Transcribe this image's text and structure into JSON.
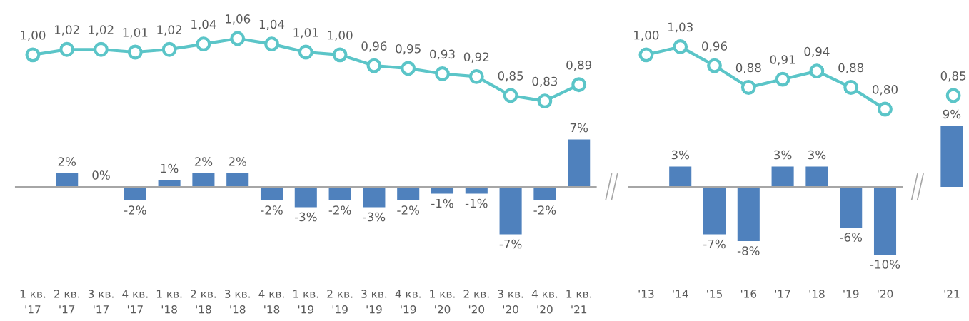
{
  "chart_data": [
    {
      "type": "line",
      "categories": [
        null,
        null,
        null,
        null,
        null,
        null,
        null,
        null,
        null,
        null,
        null,
        null,
        null,
        null,
        null,
        null,
        null
      ],
      "tick_labels": false,
      "marker": "circle",
      "series": [
        {
          "color": "#5bc5c8",
          "values": [
            1.0,
            1.02,
            1.02,
            1.01,
            1.02,
            1.04,
            1.06,
            1.04,
            1.01,
            1.0,
            0.96,
            0.95,
            0.93,
            0.92,
            0.85,
            0.83,
            0.89
          ],
          "value_labels": [
            "1,00",
            "1,02",
            "1,02",
            "1,01",
            "1,02",
            "1,04",
            "1,06",
            "1,04",
            "1,01",
            "1,00",
            "0,96",
            "0,95",
            "0,93",
            "0,92",
            "0,85",
            "0,83",
            "0,89"
          ]
        }
      ]
    },
    {
      "type": "bar",
      "categories": [
        "1 кв.\n'17",
        "2 кв.\n'17",
        "3 кв.\n'17",
        "4 кв.\n'17",
        "1 кв.\n'18",
        "2 кв.\n'18",
        "3 кв.\n'18",
        "4 кв.\n'18",
        "1 кв.\n'19",
        "2 кв.\n'19",
        "3 кв.\n'19",
        "4 кв.\n'19",
        "1 кв.\n'20",
        "2 кв.\n'20",
        "3 кв.\n'20",
        "4 кв.\n'20",
        "1 кв.\n'21"
      ],
      "tick_labels": "x",
      "series": [
        {
          "color": "#4f81bd",
          "values": [
            null,
            2,
            0,
            -2,
            1,
            2,
            2,
            -2,
            -3,
            -2,
            -3,
            -2,
            -1,
            -1,
            -7,
            -2,
            7
          ],
          "value_labels": [
            null,
            "2%",
            "0%",
            "-2%",
            "1%",
            "2%",
            "2%",
            "-2%",
            "-3%",
            "-2%",
            "-3%",
            "-2%",
            "-1%",
            "-1%",
            "-7%",
            "-2%",
            "7%"
          ]
        }
      ]
    },
    {
      "type": "line",
      "categories": [
        null,
        null,
        null,
        null,
        null,
        null,
        null,
        null,
        null,
        null
      ],
      "tick_labels": false,
      "marker": "circle",
      "series": [
        {
          "color": "#5bc5c8",
          "values": [
            1.0,
            1.03,
            0.96,
            0.88,
            0.91,
            0.94,
            0.88,
            0.8,
            null,
            null
          ],
          "value_labels": [
            "1,00",
            "1,03",
            "0,96",
            "0,88",
            "0,91",
            "0,94",
            "0,88",
            "0,80",
            null,
            null
          ]
        },
        {
          "color": "#5bc5c8",
          "values": [
            null,
            null,
            null,
            null,
            null,
            null,
            null,
            null,
            null,
            0.85
          ],
          "value_labels": [
            null,
            null,
            null,
            null,
            null,
            null,
            null,
            null,
            null,
            "0,85"
          ]
        }
      ]
    },
    {
      "type": "bar",
      "categories": [
        "'13",
        "'14",
        "'15",
        "'16",
        "'17",
        "'18",
        "'19",
        "'20"
      ],
      "tick_labels": "x",
      "series": [
        {
          "color": "#4f81bd",
          "values": [
            null,
            3,
            -7,
            -8,
            3,
            3,
            -6,
            -10
          ],
          "value_labels": [
            null,
            "3%",
            "-7%",
            "-8%",
            "3%",
            "3%",
            "-6%",
            "-10%"
          ]
        }
      ]
    },
    {
      "type": "bar",
      "categories": [
        "'21"
      ],
      "tick_labels": "x",
      "series": [
        {
          "color": "#4f81bd",
          "values": [
            9
          ],
          "value_labels": [
            "9%"
          ]
        }
      ]
    }
  ]
}
